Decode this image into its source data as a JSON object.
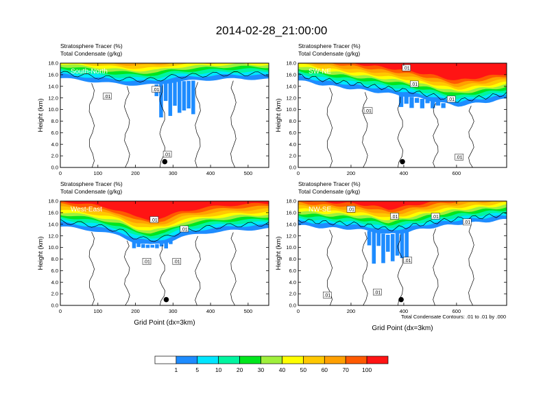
{
  "figure": {
    "title": "2014-02-28_21:00:00",
    "contour_note": "Total Condensate Contours: .01 to .01 by .000"
  },
  "colorbar": {
    "colors": [
      "#ffffff",
      "#1e8cff",
      "#00e6ff",
      "#00f5a0",
      "#00e61e",
      "#a0f03c",
      "#ffff00",
      "#ffc800",
      "#ffa000",
      "#ff5a00",
      "#ff1414"
    ],
    "labels": [
      "1",
      "5",
      "10",
      "20",
      "30",
      "40",
      "50",
      "60",
      "70",
      "100"
    ]
  },
  "chart_data": [
    {
      "type": "heatmap",
      "label": "South-North",
      "title_lines": [
        "Stratosphere Tracer   (%)",
        "Total Condensate   (g/kg)"
      ],
      "ylabel": "Height (km)",
      "xlabel": "",
      "xlim": [
        0,
        555
      ],
      "ylim": [
        0,
        18
      ],
      "xticks": [
        0,
        100,
        200,
        300,
        400,
        500
      ],
      "yticks": [
        "0.0",
        "2.0",
        "4.0",
        "6.0",
        "8.0",
        "10.0",
        "12.0",
        "14.0",
        "16.0",
        "18.0"
      ],
      "tracer_base_km": [
        [
          0,
          15.4
        ],
        [
          60,
          15.0
        ],
        [
          120,
          14.6
        ],
        [
          180,
          14.3
        ],
        [
          220,
          14.2
        ],
        [
          260,
          14.3
        ],
        [
          300,
          14.8
        ],
        [
          360,
          15.0
        ],
        [
          420,
          15.2
        ],
        [
          480,
          15.3
        ],
        [
          555,
          15.2
        ]
      ],
      "deep_intrusion": [
        {
          "x0": 250,
          "x1": 360,
          "bottom_km": 8.6
        }
      ],
      "contour_labels": [
        {
          "text": ".01",
          "x": 255,
          "y": 13.5
        },
        {
          "text": ".01",
          "x": 125,
          "y": 12.3
        },
        {
          "text": ".01",
          "x": 285,
          "y": 2.3
        }
      ],
      "marker": {
        "x": 278,
        "y": 1.0
      }
    },
    {
      "type": "heatmap",
      "label": "SW-NE",
      "title_lines": [
        "Stratosphere Tracer   (%)",
        "Total Condensate   (g/kg)"
      ],
      "ylabel": "Height (km)",
      "xlabel": "",
      "xlim": [
        0,
        790
      ],
      "ylim": [
        0,
        18
      ],
      "xticks": [
        0,
        200,
        400,
        600
      ],
      "yticks": [
        "0.0",
        "2.0",
        "4.0",
        "6.0",
        "8.0",
        "10.0",
        "12.0",
        "14.0",
        "16.0",
        "18.0"
      ],
      "tracer_base_km": [
        [
          0,
          15.0
        ],
        [
          100,
          14.2
        ],
        [
          200,
          13.6
        ],
        [
          300,
          13.0
        ],
        [
          400,
          12.4
        ],
        [
          500,
          11.6
        ],
        [
          600,
          10.6
        ],
        [
          700,
          11.2
        ],
        [
          790,
          11.8
        ]
      ],
      "deep_intrusion": [
        {
          "x0": 380,
          "x1": 560,
          "bottom_km": 10.2
        }
      ],
      "contour_labels": [
        {
          "text": ".01",
          "x": 410,
          "y": 17.2
        },
        {
          "text": ".01",
          "x": 440,
          "y": 14.4
        },
        {
          "text": ".01",
          "x": 580,
          "y": 11.8
        },
        {
          "text": ".01",
          "x": 265,
          "y": 9.8
        },
        {
          "text": ".01",
          "x": 610,
          "y": 1.8
        }
      ],
      "marker": {
        "x": 395,
        "y": 1.0
      }
    },
    {
      "type": "heatmap",
      "label": "West-East",
      "title_lines": [
        "Stratosphere Tracer   (%)",
        "Total Condensate   (g/kg)"
      ],
      "ylabel": "Height (km)",
      "xlabel": "Grid Point (dx=3km)",
      "xlim": [
        0,
        555
      ],
      "ylim": [
        0,
        18
      ],
      "xticks": [
        0,
        100,
        200,
        300,
        400,
        500
      ],
      "yticks": [
        "0.0",
        "2.0",
        "4.0",
        "6.0",
        "8.0",
        "10.0",
        "12.0",
        "14.0",
        "16.0",
        "18.0"
      ],
      "tracer_base_km": [
        [
          0,
          13.6
        ],
        [
          80,
          13.0
        ],
        [
          160,
          12.0
        ],
        [
          200,
          10.8
        ],
        [
          240,
          10.4
        ],
        [
          280,
          10.8
        ],
        [
          320,
          11.8
        ],
        [
          400,
          12.6
        ],
        [
          480,
          13.0
        ],
        [
          555,
          13.2
        ]
      ],
      "deep_intrusion": [
        {
          "x0": 190,
          "x1": 300,
          "bottom_km": 9.8
        }
      ],
      "contour_labels": [
        {
          "text": ".01",
          "x": 250,
          "y": 14.8
        },
        {
          "text": ".01",
          "x": 330,
          "y": 13.2
        },
        {
          "text": ".01",
          "x": 230,
          "y": 7.6
        },
        {
          "text": ".01",
          "x": 310,
          "y": 7.6
        }
      ],
      "marker": {
        "x": 282,
        "y": 1.0
      }
    },
    {
      "type": "heatmap",
      "label": "NW-SE",
      "title_lines": [
        "Stratosphere Tracer   (%)",
        "Total Condensate   (g/kg)"
      ],
      "ylabel": "Height (km)",
      "xlabel": "Grid Point (dx=3km)",
      "xlim": [
        0,
        790
      ],
      "ylim": [
        0,
        18
      ],
      "xticks": [
        0,
        200,
        400,
        600
      ],
      "yticks": [
        "0.0",
        "2.0",
        "4.0",
        "6.0",
        "8.0",
        "10.0",
        "12.0",
        "14.0",
        "16.0",
        "18.0"
      ],
      "tracer_base_km": [
        [
          0,
          13.8
        ],
        [
          100,
          13.4
        ],
        [
          200,
          13.2
        ],
        [
          280,
          12.8
        ],
        [
          340,
          12.2
        ],
        [
          400,
          12.6
        ],
        [
          500,
          13.4
        ],
        [
          600,
          14.0
        ],
        [
          700,
          14.4
        ],
        [
          790,
          14.8
        ]
      ],
      "deep_intrusion": [
        {
          "x0": 260,
          "x1": 420,
          "bottom_km": 7.2
        }
      ],
      "contour_labels": [
        {
          "text": ".01",
          "x": 200,
          "y": 16.6
        },
        {
          "text": ".01",
          "x": 365,
          "y": 15.4
        },
        {
          "text": ".01",
          "x": 520,
          "y": 15.4
        },
        {
          "text": ".01",
          "x": 640,
          "y": 14.4
        },
        {
          "text": ".01",
          "x": 415,
          "y": 7.8
        },
        {
          "text": ".01",
          "x": 110,
          "y": 1.8
        },
        {
          "text": ".01",
          "x": 300,
          "y": 2.3
        }
      ],
      "marker": {
        "x": 390,
        "y": 1.0
      }
    }
  ]
}
